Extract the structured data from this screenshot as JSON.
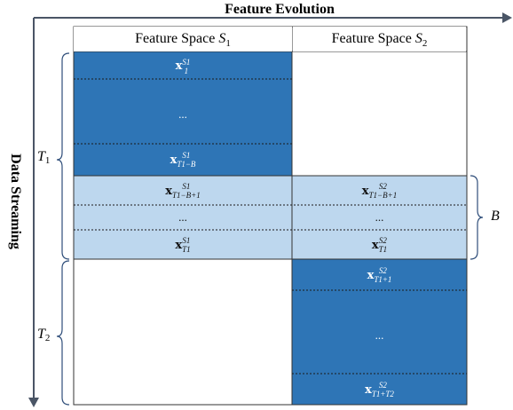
{
  "titles": {
    "horizontal": "Feature Evolution",
    "vertical": "Data Streaming"
  },
  "columns": [
    {
      "label": "Feature Space ",
      "sym": "S",
      "sub": "1"
    },
    {
      "label": "Feature Space ",
      "sym": "S",
      "sub": "2"
    }
  ],
  "braces": {
    "t1": {
      "sym": "T",
      "sub": "1"
    },
    "t2": {
      "sym": "T",
      "sub": "2"
    },
    "b": {
      "sym": "B",
      "sub": ""
    }
  },
  "cells": {
    "s1_first": {
      "sup": "S1",
      "sub": "1"
    },
    "s1_dots": "...",
    "s1_tb": {
      "sup": "S1",
      "sub": "T1−B"
    },
    "ov_s1_a": {
      "sup": "S1",
      "sub": "T1−B+1"
    },
    "ov_s1_dots": "...",
    "ov_s1_b": {
      "sup": "S1",
      "sub": "T1"
    },
    "ov_s2_a": {
      "sup": "S2",
      "sub": "T1−B+1"
    },
    "ov_s2_dots": "...",
    "ov_s2_b": {
      "sup": "S2",
      "sub": "T1"
    },
    "s2_first": {
      "sup": "S2",
      "sub": "T1+1"
    },
    "s2_dots": "...",
    "s2_last": {
      "sup": "S2",
      "sub": "T1+T2"
    }
  },
  "colors": {
    "dark_block": "#2e75b6",
    "light_block": "#bdd7ee",
    "arrow": "#4a5566",
    "brace": "#2f4e7a"
  }
}
